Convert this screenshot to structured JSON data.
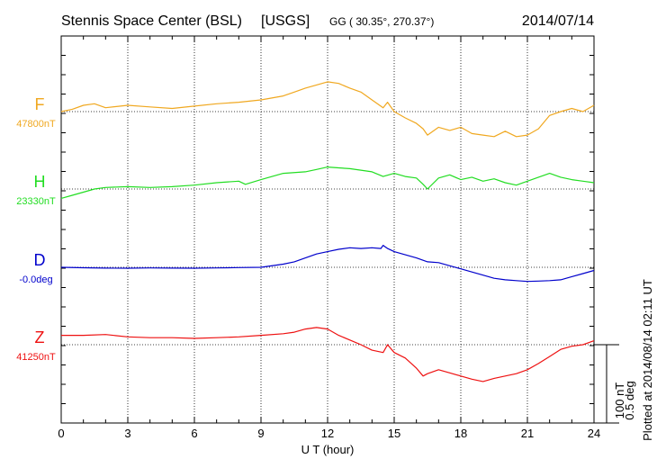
{
  "chart_data": {
    "type": "line",
    "title": "Stennis Space Center (BSL)",
    "network": "[USGS]",
    "coords": "GG ( 30.35°, 270.37°)",
    "date": "2014/07/14",
    "xlabel": "U T (hour)",
    "xlim": [
      0,
      24
    ],
    "xticks": [
      "0",
      "3",
      "6",
      "9",
      "12",
      "15",
      "18",
      "21",
      "24"
    ],
    "scale": {
      "nT": "100 nT",
      "deg": "0.5 deg"
    },
    "plotted_note": "Plotted at 2014/08/14 02:11 UT",
    "grid": true,
    "series": [
      {
        "name": "F",
        "baseline_label": "47800nT",
        "color": "#f0a820",
        "baseline": 47800,
        "x": [
          0,
          0.5,
          1,
          1.5,
          2,
          3,
          4,
          5,
          6,
          7,
          8,
          9,
          10,
          10.5,
          11,
          11.5,
          12,
          12.5,
          13,
          13.5,
          14,
          14.5,
          14.7,
          15,
          15.5,
          16,
          16.3,
          16.5,
          17,
          17.5,
          18,
          18.5,
          19,
          19.5,
          20,
          20.5,
          21,
          21.5,
          22,
          22.5,
          23,
          23.5,
          24
        ],
        "values": [
          47800,
          47803,
          47808,
          47810,
          47805,
          47808,
          47806,
          47804,
          47807,
          47810,
          47812,
          47815,
          47820,
          47825,
          47830,
          47834,
          47838,
          47836,
          47830,
          47825,
          47815,
          47805,
          47812,
          47800,
          47792,
          47785,
          47778,
          47770,
          47780,
          47776,
          47780,
          47772,
          47770,
          47768,
          47775,
          47768,
          47770,
          47778,
          47795,
          47800,
          47804,
          47800,
          47808
        ]
      },
      {
        "name": "H",
        "baseline_label": "23330nT",
        "color": "#22dd22",
        "baseline": 23330,
        "x": [
          0,
          0.5,
          1,
          1.5,
          2,
          3,
          4,
          5,
          6,
          7,
          8,
          8.3,
          9,
          10,
          11,
          11.5,
          12,
          12.5,
          13,
          13.5,
          14,
          14.5,
          15,
          15.5,
          16,
          16.3,
          16.5,
          17,
          17.5,
          18,
          18.5,
          19,
          19.5,
          20,
          20.5,
          21,
          21.5,
          22,
          22.5,
          23,
          23.5,
          24
        ],
        "values": [
          23318,
          23322,
          23326,
          23330,
          23332,
          23333,
          23332,
          23333,
          23335,
          23338,
          23340,
          23336,
          23342,
          23350,
          23352,
          23355,
          23358,
          23357,
          23356,
          23354,
          23352,
          23346,
          23350,
          23346,
          23344,
          23336,
          23330,
          23344,
          23348,
          23342,
          23345,
          23340,
          23343,
          23338,
          23335,
          23340,
          23345,
          23350,
          23345,
          23342,
          23340,
          23338
        ]
      },
      {
        "name": "D",
        "baseline_label": "-0.0deg",
        "color": "#0000cc",
        "baseline": 0,
        "x": [
          0,
          1,
          2,
          3,
          4,
          5,
          6,
          7,
          8,
          9,
          10,
          10.5,
          11,
          11.5,
          12,
          12.5,
          13,
          13.5,
          14,
          14.4,
          14.5,
          14.7,
          15,
          15.5,
          16,
          16.5,
          17,
          17.5,
          18,
          18.5,
          19,
          19.5,
          20,
          20.5,
          21,
          21.5,
          22,
          22.5,
          23,
          23.5,
          24
        ],
        "values": [
          0,
          -0.003,
          -0.005,
          -0.006,
          -0.004,
          -0.005,
          -0.006,
          -0.004,
          -0.002,
          0,
          0.02,
          0.035,
          0.06,
          0.085,
          0.1,
          0.115,
          0.125,
          0.12,
          0.125,
          0.12,
          0.14,
          0.12,
          0.1,
          0.08,
          0.06,
          0.035,
          0.03,
          0.01,
          -0.01,
          -0.03,
          -0.05,
          -0.07,
          -0.08,
          -0.085,
          -0.09,
          -0.088,
          -0.085,
          -0.08,
          -0.06,
          -0.04,
          -0.02
        ]
      },
      {
        "name": "Z",
        "baseline_label": "41250nT",
        "color": "#ee1111",
        "baseline": 41250,
        "x": [
          0,
          1,
          2,
          3,
          4,
          5,
          6,
          7,
          8,
          9,
          10,
          10.5,
          11,
          11.5,
          12,
          12.5,
          13,
          13.5,
          14,
          14.5,
          14.7,
          15,
          15.5,
          16,
          16.3,
          16.5,
          17,
          17.5,
          18,
          18.5,
          19,
          19.5,
          20,
          20.5,
          21,
          21.5,
          22,
          22.5,
          23,
          23.5,
          24
        ],
        "values": [
          41262,
          41262,
          41263,
          41260,
          41259,
          41259,
          41258,
          41259,
          41260,
          41262,
          41264,
          41266,
          41270,
          41272,
          41270,
          41262,
          41256,
          41250,
          41243,
          41240,
          41250,
          41240,
          41233,
          41220,
          41210,
          41213,
          41218,
          41214,
          41210,
          41206,
          41203,
          41207,
          41210,
          41213,
          41218,
          41226,
          41235,
          41244,
          41248,
          41250,
          41255
        ]
      }
    ]
  }
}
